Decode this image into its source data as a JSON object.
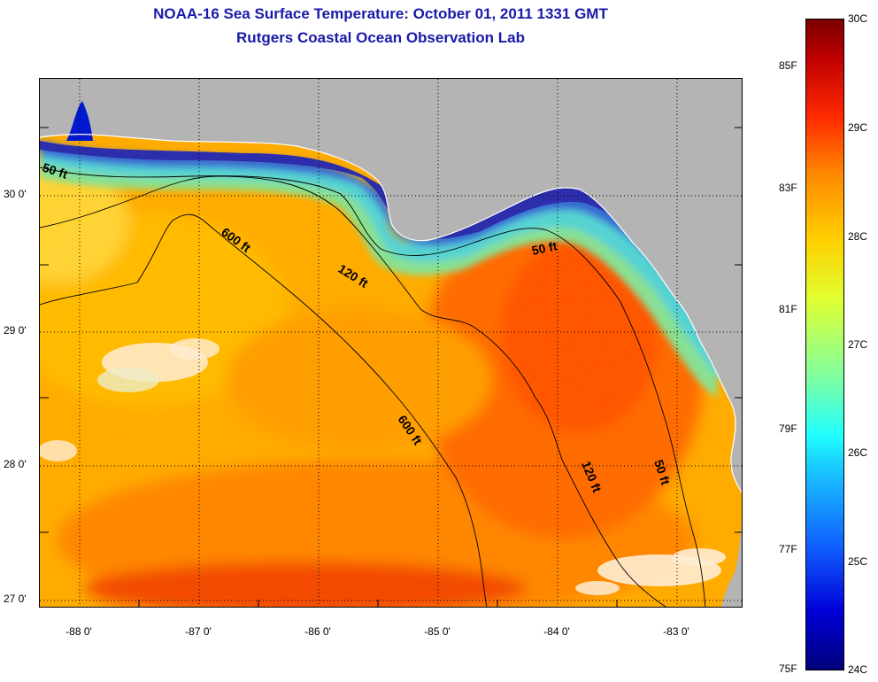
{
  "header": {
    "title": "NOAA-16 Sea Surface Temperature:  October 01, 2011 1331 GMT",
    "subtitle": "Rutgers Coastal Ocean Observation Lab"
  },
  "map": {
    "lat_ticks": [
      "30 0'",
      "29 0'",
      "28 0'",
      "27 0'"
    ],
    "lon_ticks": [
      "-88 0'",
      "-87 0'",
      "-86 0'",
      "-85 0'",
      "-84 0'",
      "-83 0'"
    ],
    "lat_range": [
      26.97,
      30.85
    ],
    "lon_range": [
      -88.33,
      -82.52
    ],
    "contour_labels": [
      {
        "text": "50 ft"
      },
      {
        "text": "600 ft"
      },
      {
        "text": "120 ft"
      },
      {
        "text": "50 ft"
      },
      {
        "text": "600 ft"
      },
      {
        "text": "120 ft"
      },
      {
        "text": "50 ft"
      }
    ],
    "colors": {
      "land": "#b4b4b4",
      "warm_water": "#ffb000",
      "hot_water": "#ff5000",
      "coastal_cool": "#70f0b0",
      "nearshore_cold": "#0018d0",
      "cloud": "#ffffff"
    }
  },
  "colorbar": {
    "fahrenheit_labels": [
      "85F",
      "83F",
      "81F",
      "79F",
      "77F",
      "75F"
    ],
    "celsius_labels": [
      "30C",
      "29C",
      "28C",
      "27C",
      "26C",
      "25C",
      "24C"
    ],
    "min_c": 24,
    "max_c": 30
  }
}
